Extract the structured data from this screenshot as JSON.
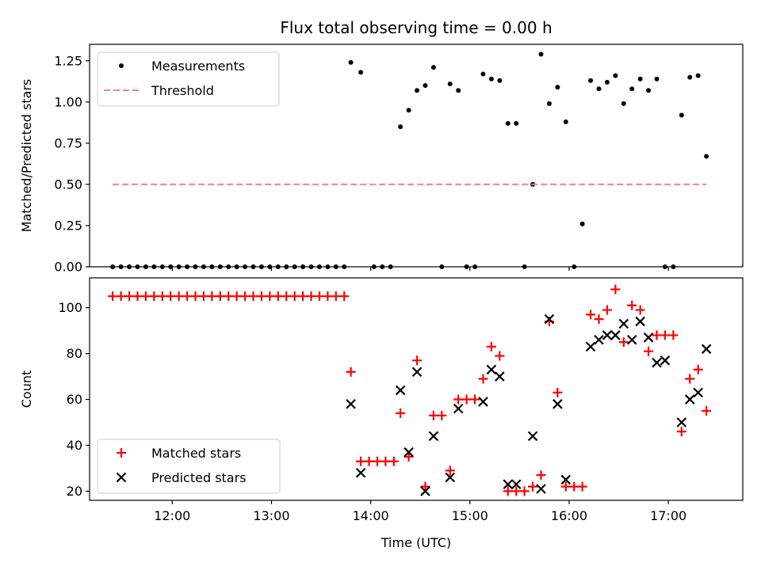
{
  "title": "Flux total observing time = 0.00 h",
  "colors": {
    "measurement": "#000000",
    "threshold": "#ff7f7f",
    "matched": "#ff0000",
    "predicted": "#000000"
  },
  "chart_data": [
    {
      "type": "scatter",
      "ylabel": "Matched/Predicted stars",
      "xlabel": "",
      "ylim": [
        0,
        1.35
      ],
      "xlim": [
        "11:10",
        "17:45"
      ],
      "y_ticks": [
        "0.00",
        "0.25",
        "0.50",
        "0.75",
        "1.00",
        "1.25"
      ],
      "legend": {
        "position": "top-left",
        "entries": [
          "Measurements",
          "Threshold"
        ]
      },
      "series": [
        {
          "name": "Measurements",
          "marker": "dot",
          "points": [
            [
              "11:24",
              0
            ],
            [
              "11:29",
              0
            ],
            [
              "11:34",
              0
            ],
            [
              "11:39",
              0
            ],
            [
              "11:44",
              0
            ],
            [
              "11:49",
              0
            ],
            [
              "11:54",
              0
            ],
            [
              "11:59",
              0
            ],
            [
              "12:04",
              0
            ],
            [
              "12:09",
              0
            ],
            [
              "12:14",
              0
            ],
            [
              "12:19",
              0
            ],
            [
              "12:24",
              0
            ],
            [
              "12:29",
              0
            ],
            [
              "12:34",
              0
            ],
            [
              "12:39",
              0
            ],
            [
              "12:44",
              0
            ],
            [
              "12:49",
              0
            ],
            [
              "12:54",
              0
            ],
            [
              "12:59",
              0
            ],
            [
              "13:04",
              0
            ],
            [
              "13:09",
              0
            ],
            [
              "13:14",
              0
            ],
            [
              "13:19",
              0
            ],
            [
              "13:24",
              0
            ],
            [
              "13:29",
              0
            ],
            [
              "13:34",
              0
            ],
            [
              "13:39",
              0
            ],
            [
              "13:44",
              0
            ],
            [
              "13:48",
              1.24
            ],
            [
              "13:54",
              1.18
            ],
            [
              "14:02",
              0
            ],
            [
              "14:07",
              0
            ],
            [
              "14:12",
              0
            ],
            [
              "14:18",
              0.85
            ],
            [
              "14:23",
              0.95
            ],
            [
              "14:28",
              1.07
            ],
            [
              "14:33",
              1.1
            ],
            [
              "14:38",
              1.21
            ],
            [
              "14:43",
              0
            ],
            [
              "14:48",
              1.11
            ],
            [
              "14:53",
              1.07
            ],
            [
              "14:58",
              0
            ],
            [
              "15:03",
              0
            ],
            [
              "15:08",
              1.17
            ],
            [
              "15:13",
              1.14
            ],
            [
              "15:18",
              1.13
            ],
            [
              "15:23",
              0.87
            ],
            [
              "15:28",
              0.87
            ],
            [
              "15:33",
              0
            ],
            [
              "15:38",
              0.5
            ],
            [
              "15:43",
              1.29
            ],
            [
              "15:48",
              0.99
            ],
            [
              "15:53",
              1.09
            ],
            [
              "15:58",
              0.88
            ],
            [
              "16:03",
              0
            ],
            [
              "16:08",
              0.26
            ],
            [
              "16:13",
              1.13
            ],
            [
              "16:18",
              1.08
            ],
            [
              "16:23",
              1.12
            ],
            [
              "16:28",
              1.16
            ],
            [
              "16:33",
              0.99
            ],
            [
              "16:38",
              1.08
            ],
            [
              "16:43",
              1.14
            ],
            [
              "16:48",
              1.07
            ],
            [
              "16:53",
              1.14
            ],
            [
              "16:58",
              0
            ],
            [
              "17:03",
              0
            ],
            [
              "17:08",
              0.92
            ],
            [
              "17:13",
              1.15
            ],
            [
              "17:18",
              1.16
            ],
            [
              "17:23",
              0.67
            ]
          ]
        },
        {
          "name": "Threshold",
          "marker": "dashed-line",
          "points": [
            [
              "11:24",
              0.5
            ],
            [
              "17:23",
              0.5
            ]
          ]
        }
      ]
    },
    {
      "type": "scatter",
      "ylabel": "Count",
      "xlabel": "Time (UTC)",
      "ylim": [
        16,
        113
      ],
      "xlim": [
        "11:10",
        "17:45"
      ],
      "y_ticks": [
        "20",
        "40",
        "60",
        "80",
        "100"
      ],
      "x_ticks": [
        "12:00",
        "13:00",
        "14:00",
        "15:00",
        "16:00",
        "17:00"
      ],
      "legend": {
        "position": "bottom-left",
        "entries": [
          "Matched stars",
          "Predicted stars"
        ]
      },
      "series": [
        {
          "name": "Matched stars",
          "marker": "plus",
          "points": [
            [
              "11:24",
              105
            ],
            [
              "11:29",
              105
            ],
            [
              "11:34",
              105
            ],
            [
              "11:39",
              105
            ],
            [
              "11:44",
              105
            ],
            [
              "11:49",
              105
            ],
            [
              "11:54",
              105
            ],
            [
              "11:59",
              105
            ],
            [
              "12:04",
              105
            ],
            [
              "12:09",
              105
            ],
            [
              "12:14",
              105
            ],
            [
              "12:19",
              105
            ],
            [
              "12:24",
              105
            ],
            [
              "12:29",
              105
            ],
            [
              "12:34",
              105
            ],
            [
              "12:39",
              105
            ],
            [
              "12:44",
              105
            ],
            [
              "12:49",
              105
            ],
            [
              "12:54",
              105
            ],
            [
              "12:59",
              105
            ],
            [
              "13:04",
              105
            ],
            [
              "13:09",
              105
            ],
            [
              "13:14",
              105
            ],
            [
              "13:19",
              105
            ],
            [
              "13:24",
              105
            ],
            [
              "13:29",
              105
            ],
            [
              "13:34",
              105
            ],
            [
              "13:39",
              105
            ],
            [
              "13:44",
              105
            ],
            [
              "13:48",
              72
            ],
            [
              "13:54",
              33
            ],
            [
              "13:59",
              33
            ],
            [
              "14:04",
              33
            ],
            [
              "14:09",
              33
            ],
            [
              "14:14",
              33
            ],
            [
              "14:18",
              54
            ],
            [
              "14:23",
              35
            ],
            [
              "14:28",
              77
            ],
            [
              "14:33",
              22
            ],
            [
              "14:38",
              53
            ],
            [
              "14:43",
              53
            ],
            [
              "14:48",
              29
            ],
            [
              "14:53",
              60
            ],
            [
              "14:58",
              60
            ],
            [
              "15:03",
              60
            ],
            [
              "15:08",
              69
            ],
            [
              "15:13",
              83
            ],
            [
              "15:18",
              79
            ],
            [
              "15:23",
              20
            ],
            [
              "15:28",
              20
            ],
            [
              "15:33",
              20
            ],
            [
              "15:38",
              22
            ],
            [
              "15:43",
              27
            ],
            [
              "15:48",
              94
            ],
            [
              "15:53",
              63
            ],
            [
              "15:58",
              22
            ],
            [
              "16:03",
              22
            ],
            [
              "16:08",
              22
            ],
            [
              "16:13",
              97
            ],
            [
              "16:18",
              95
            ],
            [
              "16:23",
              99
            ],
            [
              "16:28",
              108
            ],
            [
              "16:33",
              85
            ],
            [
              "16:38",
              101
            ],
            [
              "16:43",
              99
            ],
            [
              "16:48",
              81
            ],
            [
              "16:53",
              88
            ],
            [
              "16:58",
              88
            ],
            [
              "17:03",
              88
            ],
            [
              "17:08",
              46
            ],
            [
              "17:13",
              69
            ],
            [
              "17:18",
              73
            ],
            [
              "17:23",
              55
            ]
          ]
        },
        {
          "name": "Predicted stars",
          "marker": "x",
          "points": [
            [
              "13:48",
              58
            ],
            [
              "13:54",
              28
            ],
            [
              "14:18",
              64
            ],
            [
              "14:23",
              37
            ],
            [
              "14:28",
              72
            ],
            [
              "14:33",
              20
            ],
            [
              "14:38",
              44
            ],
            [
              "14:48",
              26
            ],
            [
              "14:53",
              56
            ],
            [
              "15:08",
              59
            ],
            [
              "15:13",
              73
            ],
            [
              "15:18",
              70
            ],
            [
              "15:23",
              23
            ],
            [
              "15:28",
              23
            ],
            [
              "15:38",
              44
            ],
            [
              "15:43",
              21
            ],
            [
              "15:48",
              95
            ],
            [
              "15:53",
              58
            ],
            [
              "15:58",
              25
            ],
            [
              "16:13",
              83
            ],
            [
              "16:18",
              86
            ],
            [
              "16:23",
              88
            ],
            [
              "16:28",
              88
            ],
            [
              "16:33",
              93
            ],
            [
              "16:38",
              86
            ],
            [
              "16:43",
              94
            ],
            [
              "16:48",
              87
            ],
            [
              "16:53",
              76
            ],
            [
              "16:58",
              77
            ],
            [
              "17:08",
              50
            ],
            [
              "17:13",
              60
            ],
            [
              "17:18",
              63
            ],
            [
              "17:23",
              82
            ]
          ]
        }
      ]
    }
  ]
}
